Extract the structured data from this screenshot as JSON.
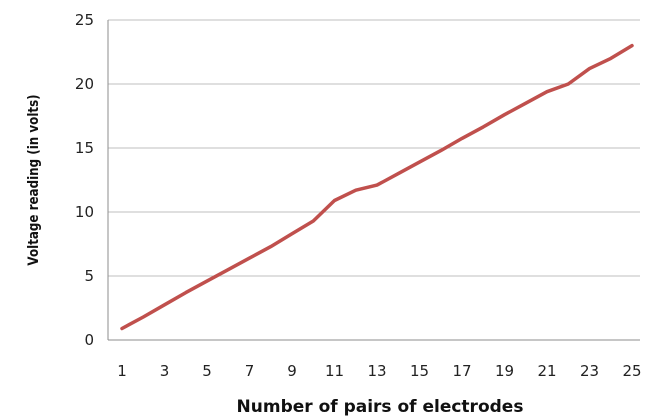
{
  "chart_data": {
    "type": "line",
    "title": "",
    "xlabel": "Number of pairs of electrodes",
    "ylabel": "Voltage reading (in volts)",
    "x": [
      1,
      2,
      3,
      4,
      5,
      6,
      7,
      8,
      9,
      10,
      11,
      12,
      13,
      14,
      15,
      16,
      17,
      18,
      19,
      20,
      21,
      22,
      23,
      24,
      25
    ],
    "x_tick_labels": [
      "1",
      "3",
      "5",
      "7",
      "9",
      "11",
      "13",
      "15",
      "17",
      "19",
      "21",
      "23",
      "25"
    ],
    "y_tick_labels": [
      "0",
      "5",
      "10",
      "15",
      "20",
      "25"
    ],
    "ylim": [
      0,
      25
    ],
    "grid": "horizontal",
    "legend": "none",
    "series": [
      {
        "values": [
          0.9,
          1.8,
          2.75,
          3.7,
          4.6,
          5.5,
          6.4,
          7.3,
          8.3,
          9.3,
          10.9,
          11.7,
          12.1,
          13.0,
          13.9,
          14.8,
          15.75,
          16.65,
          17.6,
          18.5,
          19.4,
          20.0,
          21.2,
          22.0,
          23.0
        ],
        "color": "#c0504d"
      }
    ]
  }
}
